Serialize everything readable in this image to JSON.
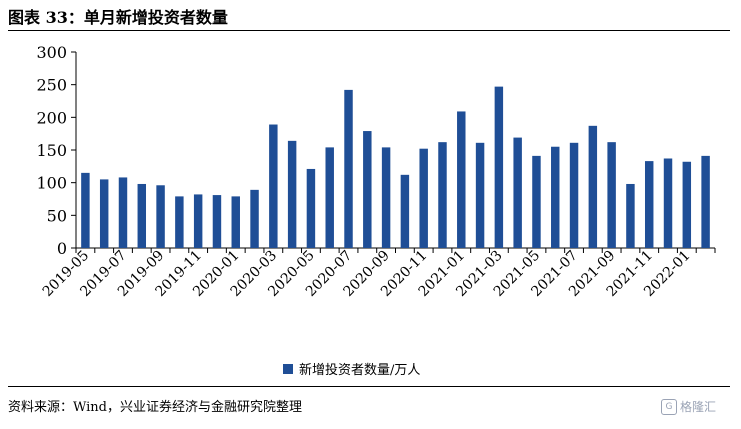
{
  "header": {
    "title": "图表 33：单月新增投资者数量"
  },
  "legend": {
    "label": "新增投资者数量/万人",
    "color": "#1f4e96"
  },
  "footer": {
    "source": "资料来源：Wind，兴业证券经济与金融研究院整理"
  },
  "watermark": {
    "logo": "G",
    "text": "格隆汇"
  },
  "chart_data": {
    "type": "bar",
    "categories": [
      "2019-05",
      "2019-06",
      "2019-07",
      "2019-08",
      "2019-09",
      "2019-10",
      "2019-11",
      "2019-12",
      "2020-01",
      "2020-02",
      "2020-03",
      "2020-04",
      "2020-05",
      "2020-06",
      "2020-07",
      "2020-08",
      "2020-09",
      "2020-10",
      "2020-11",
      "2020-12",
      "2021-01",
      "2021-02",
      "2021-03",
      "2021-04",
      "2021-05",
      "2021-06",
      "2021-07",
      "2021-08",
      "2021-09",
      "2021-10",
      "2021-11",
      "2021-12",
      "2022-01",
      "2022-02"
    ],
    "tick_labels": [
      "2019-05",
      "",
      "2019-07",
      "",
      "2019-09",
      "",
      "2019-11",
      "",
      "2020-01",
      "",
      "2020-03",
      "",
      "2020-05",
      "",
      "2020-07",
      "",
      "2020-09",
      "",
      "2020-11",
      "",
      "2021-01",
      "",
      "2021-03",
      "",
      "2021-05",
      "",
      "2021-07",
      "",
      "2021-09",
      "",
      "2021-11",
      "",
      "2022-01",
      ""
    ],
    "series": [
      {
        "name": "新增投资者数量/万人",
        "values": [
          115,
          105,
          108,
          98,
          96,
          79,
          82,
          81,
          79,
          89,
          189,
          164,
          121,
          154,
          242,
          179,
          154,
          112,
          152,
          162,
          209,
          161,
          247,
          169,
          141,
          155,
          161,
          187,
          162,
          98,
          133,
          137,
          132,
          141
        ]
      }
    ],
    "ylim": [
      0,
      300
    ],
    "yticks": [
      0,
      50,
      100,
      150,
      200,
      250,
      300
    ],
    "grid": false
  }
}
